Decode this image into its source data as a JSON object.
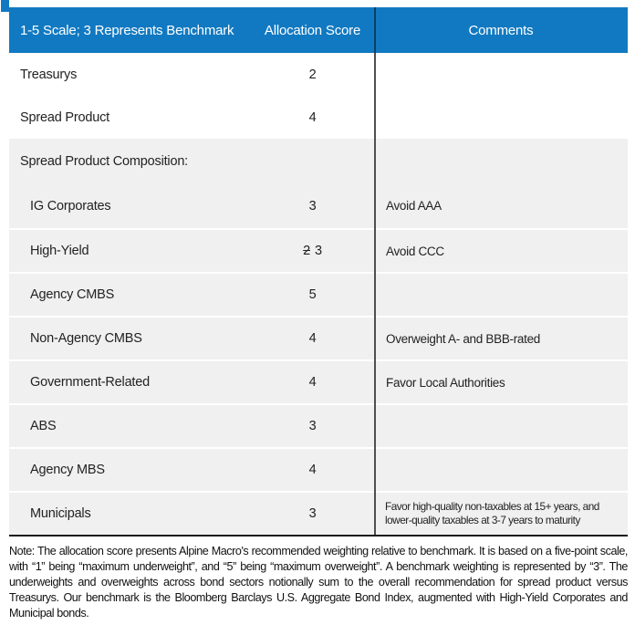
{
  "header": {
    "scale_label": "1-5 Scale; 3 Represents Benchmark",
    "score_label": "Allocation Score",
    "comments_label": "Comments"
  },
  "rows": [
    {
      "label": "Treasurys",
      "score": "2",
      "comment": ""
    },
    {
      "label": "Spread Product",
      "score": "4",
      "comment": ""
    },
    {
      "label": "Spread Product Composition:",
      "score": "",
      "comment": ""
    },
    {
      "label": "IG Corporates",
      "score": "3",
      "comment": "Avoid AAA"
    },
    {
      "label": "High-Yield",
      "score_struck": "2",
      "score": "3",
      "comment": "Avoid CCC"
    },
    {
      "label": "Agency CMBS",
      "score": "5",
      "comment": ""
    },
    {
      "label": "Non-Agency CMBS",
      "score": "4",
      "comment": "Overweight A- and BBB-rated"
    },
    {
      "label": "Government-Related",
      "score": "4",
      "comment": "Favor Local Authorities"
    },
    {
      "label": "ABS",
      "score": "3",
      "comment": ""
    },
    {
      "label": "Agency MBS",
      "score": "4",
      "comment": ""
    },
    {
      "label": "Municipals",
      "score": "3",
      "comment": "Favor high-quality non-taxables at 15+ years, and lower-quality taxables at 3-7 years to maturity"
    }
  ],
  "note": "Note: The allocation score presents Alpine Macro's recommended weighting relative to benchmark. It is based on a five-point scale, with “1” being “maximum underweight”, and “5” being “maximum overweight”. A benchmark weighting is represented by “3”. The underweights and overweights across bond sectors notionally sum to the overall recommendation for spread product versus Treasurys. Our benchmark is the Bloomberg Barclays U.S. Aggregate Bond Index, augmented with High-Yield Corporates and Municipal bonds.",
  "colors": {
    "header_bg": "#1179c1",
    "header_divider": "#0e3f63",
    "divider": "#4f4f4f",
    "row_alt_bg": "#f0f0f1",
    "rule": "#1a1a1a"
  }
}
